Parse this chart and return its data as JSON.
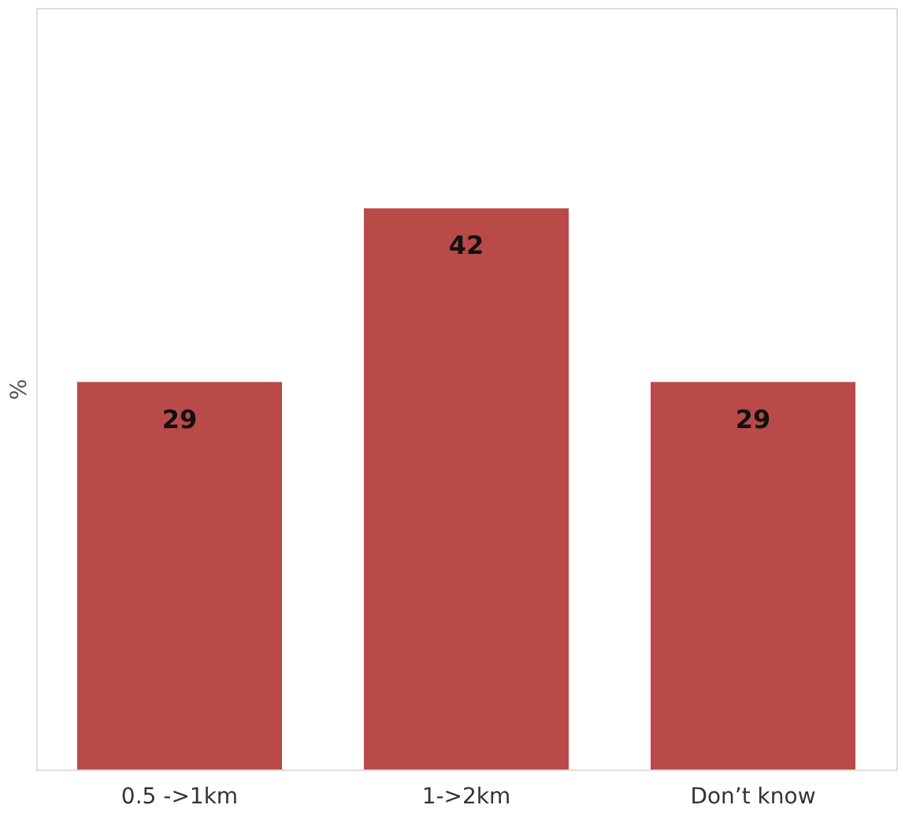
{
  "chart_data": {
    "type": "bar",
    "ylabel": "%",
    "categories": [
      "0.5 ->1km",
      "1->2km",
      "Don’t know"
    ],
    "values": [
      29,
      42,
      29
    ],
    "color": "#b94a48",
    "ylim": [
      0,
      57
    ],
    "data_labels": true,
    "tick_labels": "x",
    "grid": false
  }
}
